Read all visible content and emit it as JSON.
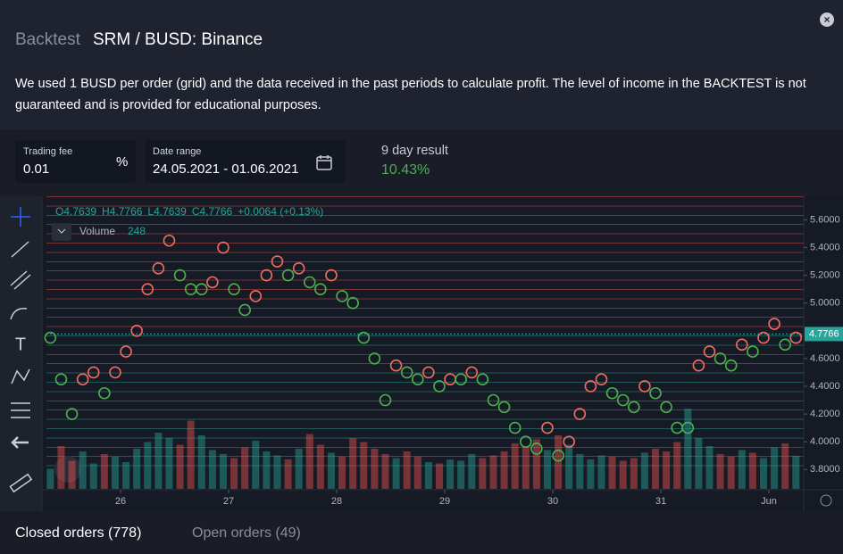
{
  "header": {
    "label": "Backtest",
    "title": "SRM / BUSD: Binance",
    "description": "We used 1 BUSD per order (grid) and the data received in the past periods to calculate profit. The level of income in the BACKTEST is not guaranteed and is provided for educational purposes."
  },
  "settings": {
    "trading_fee_label": "Trading fee",
    "trading_fee_value": "0.01",
    "trading_fee_unit": "%",
    "date_range_label": "Date range",
    "date_range_value": "24.05.2021 - 01.06.2021",
    "result_label": "9 day result",
    "result_value": "10.43%"
  },
  "tabs": [
    "Closed orders (778)",
    "Open orders (49)"
  ],
  "chart_data": {
    "type": "line",
    "ohlc": [
      "O4.7639",
      "H4.7766",
      "L4.7639",
      "C4.7766",
      "+0.0064 (+0.13%)"
    ],
    "x": [
      25.35,
      25.45,
      25.55,
      25.65,
      25.75,
      25.85,
      25.95,
      26.05,
      26.15,
      26.25,
      26.35,
      26.45,
      26.55,
      26.65,
      26.75,
      26.85,
      26.95,
      27.05,
      27.15,
      27.25,
      27.35,
      27.45,
      27.55,
      27.65,
      27.75,
      27.85,
      27.95,
      28.05,
      28.15,
      28.25,
      28.35,
      28.45,
      28.55,
      28.65,
      28.75,
      28.85,
      28.95,
      29.05,
      29.15,
      29.25,
      29.35,
      29.45,
      29.55,
      29.65,
      29.75,
      29.85,
      29.95,
      30.05,
      30.15,
      30.25,
      30.35,
      30.45,
      30.55,
      30.65,
      30.75,
      30.85,
      30.95,
      31.05,
      31.15,
      31.25,
      31.35,
      31.45,
      31.55,
      31.65,
      31.75,
      31.85,
      31.95,
      32.05,
      32.15,
      32.25
    ],
    "values": [
      4.75,
      4.45,
      4.2,
      4.45,
      4.5,
      4.35,
      4.5,
      4.65,
      4.8,
      5.1,
      5.25,
      5.45,
      5.2,
      5.1,
      5.1,
      5.15,
      5.4,
      5.1,
      4.95,
      5.05,
      5.2,
      5.3,
      5.2,
      5.25,
      5.15,
      5.1,
      5.2,
      5.05,
      5.0,
      4.75,
      4.6,
      4.3,
      4.55,
      4.5,
      4.45,
      4.5,
      4.4,
      4.45,
      4.45,
      4.5,
      4.45,
      4.3,
      4.25,
      4.1,
      4.0,
      3.95,
      4.1,
      3.9,
      4.0,
      4.2,
      4.4,
      4.45,
      4.35,
      4.3,
      4.25,
      4.4,
      4.35,
      4.25,
      4.1,
      4.1,
      4.55,
      4.65,
      4.6,
      4.55,
      4.7,
      4.65,
      4.75,
      4.85,
      4.7,
      4.75
    ],
    "volume": {
      "name": "Volume",
      "values": [
        150,
        320,
        210,
        280,
        190,
        260,
        240,
        200,
        300,
        350,
        420,
        380,
        330,
        510,
        400,
        290,
        260,
        230,
        310,
        360,
        280,
        250,
        220,
        300,
        410,
        330,
        270,
        240,
        380,
        350,
        300,
        260,
        230,
        280,
        240,
        200,
        190,
        220,
        210,
        260,
        230,
        250,
        280,
        340,
        310,
        370,
        290,
        400,
        330,
        260,
        220,
        250,
        240,
        210,
        230,
        270,
        300,
        280,
        350,
        600,
        380,
        320,
        260,
        240,
        290,
        270,
        230,
        310,
        340,
        248
      ]
    },
    "last_price": {
      "value": 4.7766,
      "label": "4.7766"
    },
    "xlim": [
      25.314,
      32.322
    ],
    "xticks": [
      {
        "value": 26,
        "label": "26"
      },
      {
        "value": 27,
        "label": "27"
      },
      {
        "value": 28,
        "label": "28"
      },
      {
        "value": 29,
        "label": "29"
      },
      {
        "value": 30,
        "label": "30"
      },
      {
        "value": 31,
        "label": "31"
      },
      {
        "value": 32,
        "label": "Jun"
      }
    ],
    "ylim": [
      3.66,
      5.77
    ],
    "yticks": [
      {
        "value": 3.8,
        "label": "3.8000"
      },
      {
        "value": 4.0,
        "label": "4.0000"
      },
      {
        "value": 4.2,
        "label": "4.2000"
      },
      {
        "value": 4.4,
        "label": "4.4000"
      },
      {
        "value": 4.6,
        "label": "4.6000"
      },
      {
        "value": 5.0,
        "label": "5.0000"
      },
      {
        "value": 5.2,
        "label": "5.2000"
      },
      {
        "value": 5.4,
        "label": "5.4000"
      },
      {
        "value": 5.6,
        "label": "5.6000"
      }
    ],
    "up_color": "#ef5350",
    "down_color": "#26a69a",
    "marker_up_color": "#f26b60",
    "marker_down_color": "#4caf50"
  }
}
